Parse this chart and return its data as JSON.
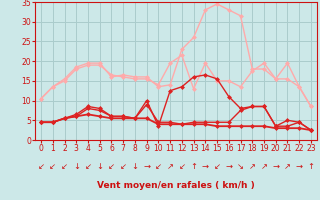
{
  "bg_color": "#cce8e8",
  "grid_color": "#aacccc",
  "x": [
    0,
    1,
    2,
    3,
    4,
    5,
    6,
    7,
    8,
    9,
    10,
    11,
    12,
    13,
    14,
    15,
    16,
    17,
    18,
    19,
    20,
    21,
    22,
    23
  ],
  "series": [
    {
      "color": "#ffaaaa",
      "marker": "D",
      "ms": 2.5,
      "lw": 1.0,
      "y": [
        10.5,
        13.5,
        15.5,
        18.5,
        19.5,
        19.5,
        16.0,
        16.5,
        16.0,
        16.0,
        13.5,
        14.0,
        23.0,
        26.0,
        33.0,
        34.5,
        33.0,
        31.5,
        18.0,
        18.0,
        15.5,
        19.5,
        13.5,
        8.5
      ]
    },
    {
      "color": "#ffaaaa",
      "marker": "D",
      "ms": 2.5,
      "lw": 1.0,
      "y": [
        10.5,
        13.5,
        15.0,
        18.0,
        19.0,
        19.0,
        16.5,
        16.0,
        15.5,
        15.5,
        14.0,
        19.5,
        21.5,
        13.0,
        19.5,
        15.0,
        15.0,
        13.5,
        17.5,
        19.5,
        15.5,
        15.5,
        13.5,
        8.5
      ]
    },
    {
      "color": "#dd2222",
      "marker": "D",
      "ms": 2.5,
      "lw": 1.0,
      "y": [
        4.5,
        4.5,
        5.5,
        6.5,
        8.5,
        8.0,
        6.0,
        6.0,
        5.5,
        10.0,
        3.5,
        12.5,
        13.5,
        16.0,
        16.5,
        15.5,
        11.0,
        8.0,
        8.5,
        8.5,
        3.5,
        5.0,
        4.5,
        2.5
      ]
    },
    {
      "color": "#dd2222",
      "marker": "D",
      "ms": 2.5,
      "lw": 1.0,
      "y": [
        4.5,
        4.5,
        5.5,
        6.0,
        8.0,
        7.5,
        6.0,
        6.0,
        5.5,
        9.0,
        4.5,
        4.5,
        4.0,
        4.5,
        4.5,
        4.5,
        4.5,
        7.5,
        8.5,
        8.5,
        3.5,
        3.5,
        4.5,
        2.5
      ]
    },
    {
      "color": "#dd2222",
      "marker": "D",
      "ms": 2.5,
      "lw": 1.3,
      "y": [
        4.5,
        4.5,
        5.5,
        6.0,
        6.5,
        6.0,
        5.5,
        5.5,
        5.5,
        5.5,
        4.0,
        4.0,
        4.0,
        4.0,
        4.0,
        3.5,
        3.5,
        3.5,
        3.5,
        3.5,
        3.0,
        3.0,
        3.0,
        2.5
      ]
    }
  ],
  "arrows": [
    "↙",
    "↙",
    "↙",
    "↓",
    "↙",
    "↓",
    "↙",
    "↙",
    "↓",
    "→",
    "↙",
    "↗",
    "↙",
    "↑",
    "→",
    "↙",
    "→",
    "↘",
    "↗",
    "↗",
    "→",
    "↗",
    "→",
    "↑"
  ],
  "xlabel": "Vent moyen/en rafales ( km/h )",
  "xlim": [
    -0.5,
    23.5
  ],
  "ylim": [
    0,
    35
  ],
  "yticks": [
    0,
    5,
    10,
    15,
    20,
    25,
    30,
    35
  ],
  "xticks": [
    0,
    1,
    2,
    3,
    4,
    5,
    6,
    7,
    8,
    9,
    10,
    11,
    12,
    13,
    14,
    15,
    16,
    17,
    18,
    19,
    20,
    21,
    22,
    23
  ],
  "axis_color": "#cc1111",
  "tick_color": "#cc1111",
  "label_color": "#cc1111",
  "tick_fontsize": 5.5,
  "xlabel_fontsize": 6.5,
  "arrow_fontsize": 6.0
}
